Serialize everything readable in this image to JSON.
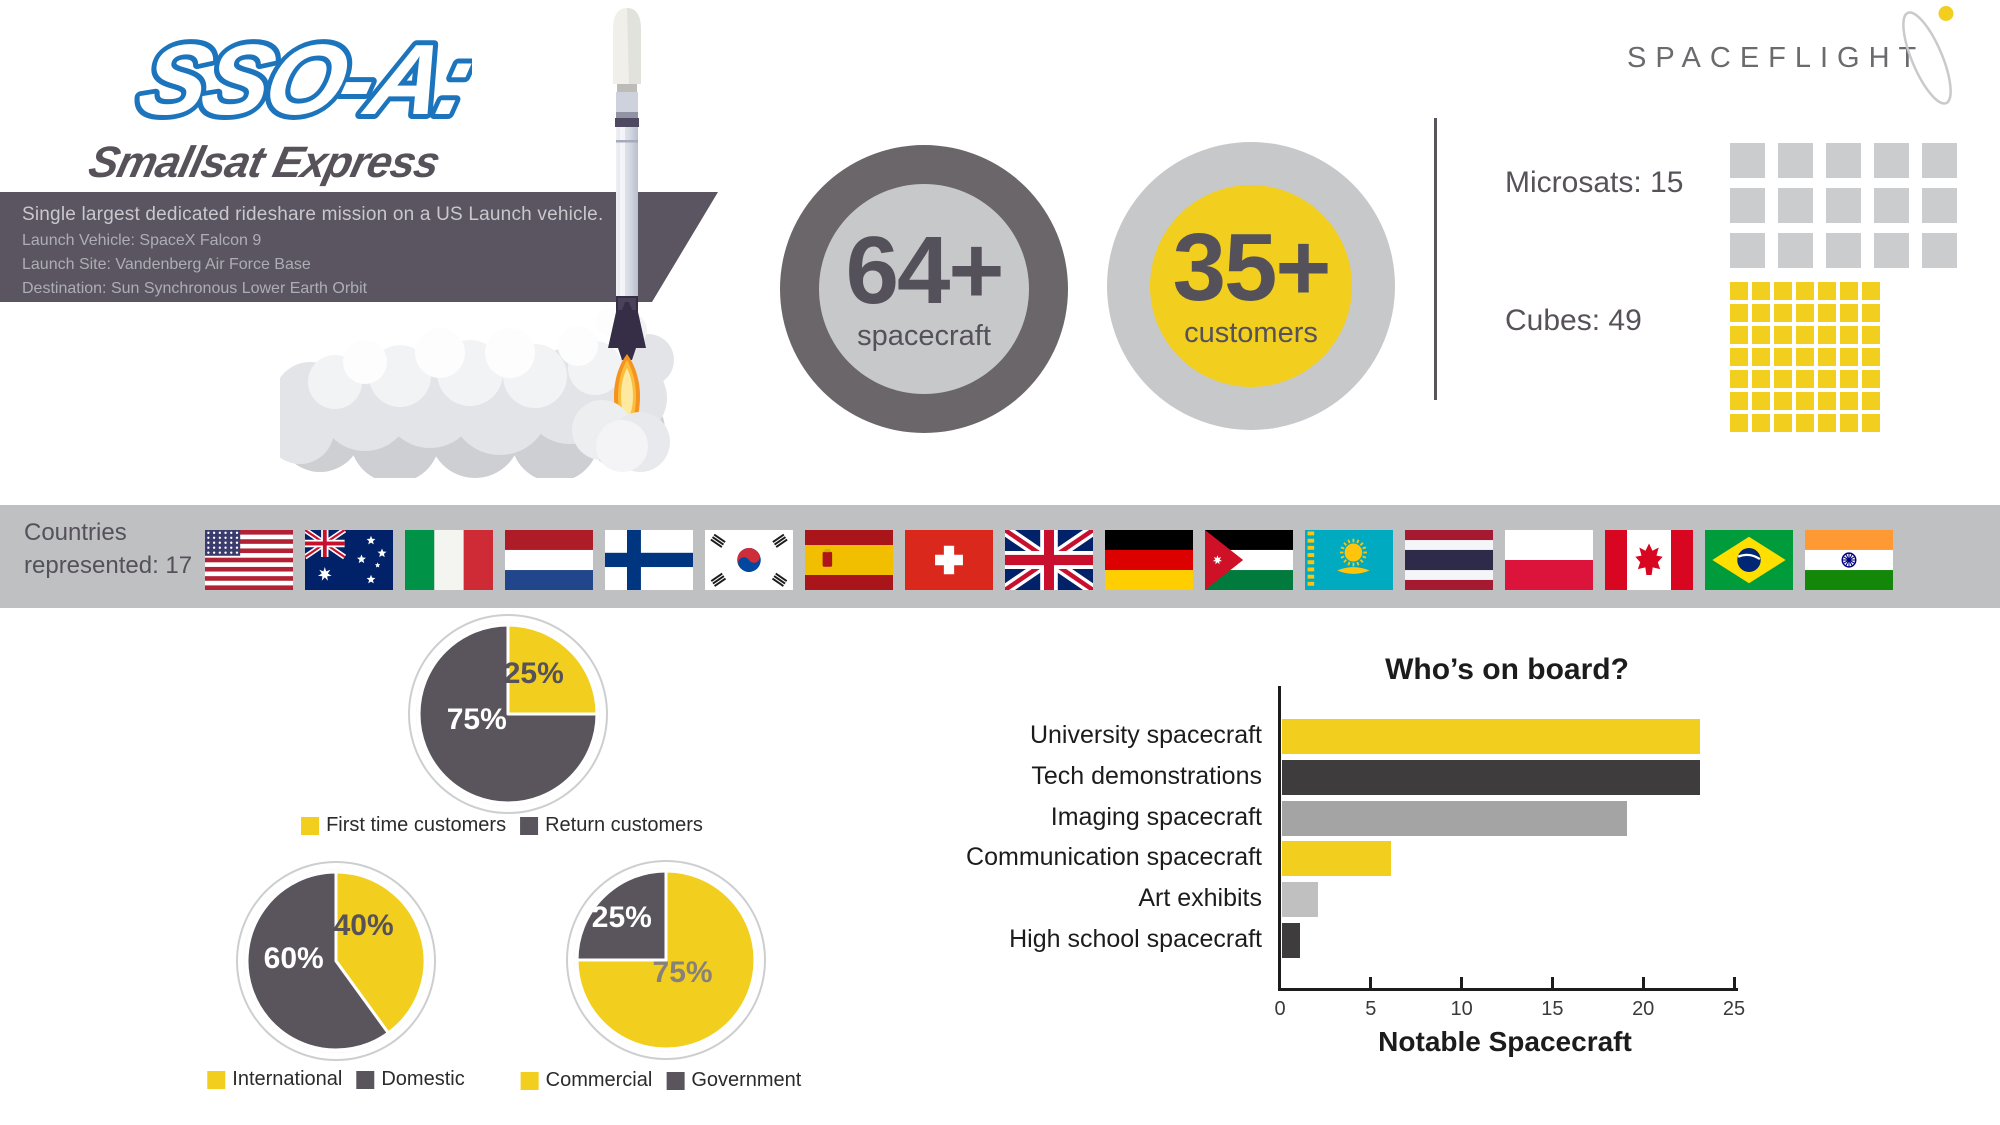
{
  "logo": {
    "title": "SSO-A:",
    "subtitle": "Smallsat Express"
  },
  "banner": {
    "headline": "Single largest dedicated rideshare mission on a US Launch vehicle.",
    "details": [
      "Launch Vehicle: SpaceX Falcon 9",
      "Launch Site: Vandenberg Air Force Base",
      "Destination: Sun Synchronous Lower Earth Orbit"
    ]
  },
  "stats": [
    {
      "value": "64+",
      "label": "spacecraft",
      "ring_color": "#6B6669",
      "fill_color": "#C7C8CA"
    },
    {
      "value": "35+",
      "label": "customers",
      "ring_color": "#C7C8CA",
      "fill_color": "#F2CE1E"
    }
  ],
  "payloads": [
    {
      "label": "Microsats: 15",
      "count": 15,
      "columns": 5,
      "color": "#CBCCCE"
    },
    {
      "label": "Cubes: 49",
      "count": 49,
      "columns": 7,
      "color": "#F2CE1E"
    }
  ],
  "brand": {
    "name": "SPACEFLIGHT",
    "text_color": "#6B6B6E",
    "dot_color": "#F2CE1E"
  },
  "countries": {
    "label": "Countries represented: 17",
    "count": 17,
    "flags": [
      "United States",
      "Australia",
      "Italy",
      "Netherlands",
      "Finland",
      "South Korea",
      "Spain",
      "Switzerland",
      "United Kingdom",
      "Germany",
      "Jordan",
      "Kazakhstan",
      "Thailand",
      "Poland",
      "Canada",
      "Brazil",
      "India"
    ]
  },
  "colors": {
    "yellow": "#F2CE1E",
    "dark_gray": "#5A555C",
    "light_gray": "#C7C8CA",
    "band_gray": "#BFC0C2",
    "blue": "#1B74BC"
  },
  "chart_data": [
    {
      "type": "pie",
      "name": "customer-mix",
      "slices": [
        {
          "label": "First time customers",
          "value": 25,
          "color": "#F2CE1E",
          "value_label": "25%",
          "value_label_color": "#57525A"
        },
        {
          "label": "Return customers",
          "value": 75,
          "color": "#5A555C",
          "value_label": "75%",
          "value_label_color": "#FFFFFF"
        }
      ]
    },
    {
      "type": "pie",
      "name": "origin-mix",
      "slices": [
        {
          "label": "International",
          "value": 40,
          "color": "#F2CE1E",
          "value_label": "40%",
          "value_label_color": "#57525A"
        },
        {
          "label": "Domestic",
          "value": 60,
          "color": "#5A555C",
          "value_label": "60%",
          "value_label_color": "#FFFFFF"
        }
      ]
    },
    {
      "type": "pie",
      "name": "sector-mix",
      "slices": [
        {
          "label": "Commercial",
          "value": 75,
          "color": "#F2CE1E",
          "value_label": "75%",
          "value_label_color": "#87817B"
        },
        {
          "label": "Government",
          "value": 25,
          "color": "#5A555C",
          "value_label": "25%",
          "value_label_color": "#FFFFFF"
        }
      ]
    },
    {
      "type": "bar",
      "name": "whos-on-board",
      "title": "Who’s on board?",
      "xlabel": "Notable Spacecraft",
      "xlim": [
        0,
        25
      ],
      "xticks": [
        0,
        5,
        10,
        15,
        20,
        25
      ],
      "categories": [
        "University spacecraft",
        "Tech demonstrations",
        "Imaging spacecraft",
        "Communication spacecraft",
        "Art exhibits",
        "High school spacecraft"
      ],
      "values": [
        23,
        23,
        19,
        6,
        2,
        1
      ],
      "bar_colors": [
        "#F2CE1E",
        "#3E3C3D",
        "#A5A4A4",
        "#F2CE1E",
        "#C1C0C1",
        "#3E3C3D"
      ],
      "axis_color": "#1C1C1C"
    },
    {
      "type": "pictogram",
      "name": "microsats",
      "label": "Microsats: 15",
      "count": 15
    },
    {
      "type": "pictogram",
      "name": "cubes",
      "label": "Cubes: 49",
      "count": 49
    }
  ]
}
